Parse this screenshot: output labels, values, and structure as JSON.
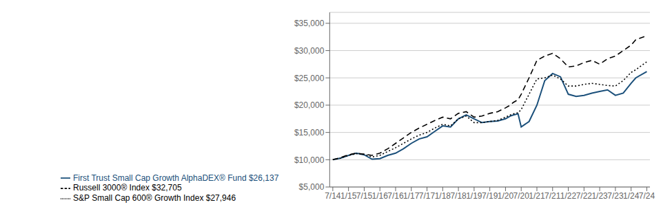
{
  "chart_data": {
    "type": "line",
    "title": "",
    "x": [
      0,
      0.5,
      1,
      1.5,
      2,
      2.5,
      3,
      3.5,
      4,
      4.5,
      5,
      5.5,
      6,
      6.5,
      7,
      7.5,
      8,
      8.5,
      9,
      9.5,
      10,
      10.5,
      11,
      11.3,
      11.5,
      11.8,
      12,
      12.5,
      13,
      13.5,
      14,
      14.5,
      15,
      15.5,
      16,
      16.5,
      17,
      17.5,
      18,
      18.5,
      19,
      19.3,
      20
    ],
    "xlim": [
      -0.2,
      20.2
    ],
    "xticks": [
      {
        "value": 0,
        "label": "7/14"
      },
      {
        "value": 1,
        "label": "1/15"
      },
      {
        "value": 2,
        "label": "7/15"
      },
      {
        "value": 3,
        "label": "1/16"
      },
      {
        "value": 4,
        "label": "7/16"
      },
      {
        "value": 5,
        "label": "1/17"
      },
      {
        "value": 6,
        "label": "7/17"
      },
      {
        "value": 7,
        "label": "1/18"
      },
      {
        "value": 8,
        "label": "7/18"
      },
      {
        "value": 9,
        "label": "1/19"
      },
      {
        "value": 10,
        "label": "7/19"
      },
      {
        "value": 11,
        "label": "1/20"
      },
      {
        "value": 12,
        "label": "7/20"
      },
      {
        "value": 13,
        "label": "1/21"
      },
      {
        "value": 14,
        "label": "7/21"
      },
      {
        "value": 15,
        "label": "1/22"
      },
      {
        "value": 16,
        "label": "7/22"
      },
      {
        "value": 17,
        "label": "1/23"
      },
      {
        "value": 18,
        "label": "7/23"
      },
      {
        "value": 19,
        "label": "1/24"
      },
      {
        "value": 20,
        "label": "7/24"
      }
    ],
    "ylim": [
      5000,
      37000
    ],
    "yticks": [
      {
        "value": 5000,
        "label": "$5,000"
      },
      {
        "value": 10000,
        "label": "$10,000"
      },
      {
        "value": 15000,
        "label": "$15,000"
      },
      {
        "value": 20000,
        "label": "$20,000"
      },
      {
        "value": 25000,
        "label": "$25,000"
      },
      {
        "value": 30000,
        "label": "$30,000"
      },
      {
        "value": 35000,
        "label": "$35,000"
      }
    ],
    "grid": true,
    "legend": "bottom",
    "series": [
      {
        "name": "First Trust Small Cap Growth AlphaDEX® Fund $26,137",
        "color": "#1a4f7a",
        "line_style": "solid",
        "values": [
          10000,
          10300,
          10800,
          11200,
          10900,
          10100,
          10200,
          10800,
          11200,
          12000,
          13000,
          13800,
          14200,
          15200,
          16200,
          16000,
          17500,
          18200,
          17500,
          16800,
          17000,
          17100,
          17500,
          18000,
          18200,
          18400,
          16000,
          17000,
          20000,
          24500,
          25800,
          25200,
          22000,
          21600,
          21800,
          22200,
          22500,
          22800,
          21800,
          22200,
          24000,
          25000,
          26137
        ]
      },
      {
        "name": "S&P Small Cap 600® Growth Index $27,946",
        "color": "#000000",
        "line_style": "dotted",
        "values": [
          10000,
          10300,
          10800,
          11100,
          11000,
          10500,
          10800,
          11500,
          12200,
          13000,
          13800,
          14500,
          15000,
          15800,
          16500,
          16200,
          17500,
          18000,
          16800,
          16800,
          17000,
          17200,
          17800,
          18200,
          18400,
          18600,
          19200,
          22000,
          24800,
          25000,
          25500,
          24800,
          23500,
          23500,
          23800,
          24000,
          23800,
          23600,
          23500,
          24500,
          26000,
          26500,
          27946
        ]
      },
      {
        "name": "Russell 3000® Index $32,705",
        "color": "#000000",
        "line_style": "dashed",
        "values": [
          10000,
          10400,
          10900,
          11200,
          11000,
          10800,
          11200,
          12000,
          13000,
          14000,
          15000,
          15800,
          16500,
          17200,
          17800,
          17500,
          18500,
          18800,
          17800,
          18000,
          18500,
          18800,
          19500,
          20000,
          20500,
          21000,
          22000,
          25000,
          28200,
          29000,
          29500,
          28500,
          27000,
          27200,
          27800,
          28200,
          27500,
          28500,
          29000,
          30000,
          31000,
          32000,
          32705
        ]
      }
    ]
  }
}
